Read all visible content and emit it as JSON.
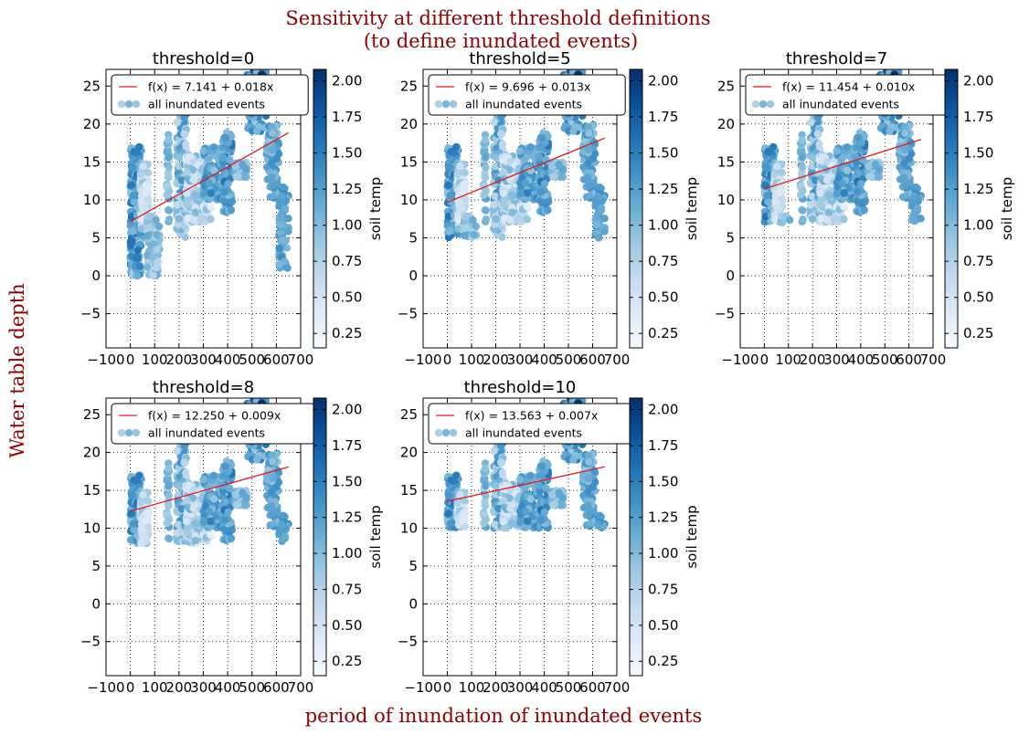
{
  "figure": {
    "suptitle_line1": "Sensitivity at different threshold definitions",
    "suptitle_line2": "(to define inundated events)",
    "ylabel": "Water table depth",
    "xlabel": "period of inundation of inundated events",
    "title_color": "#8b0000",
    "fit_line_color": "#e41a1c",
    "colormap": "Blues"
  },
  "chart_data": [
    {
      "type": "scatter",
      "title": "threshold=0",
      "threshold": 0,
      "xlim": [
        -100,
        700
      ],
      "ylim": [
        -9.5,
        27.2
      ],
      "xticks": [
        -100,
        0,
        100,
        200,
        300,
        400,
        500,
        600,
        700
      ],
      "xticklabels": [
        "−100",
        "0",
        "100",
        "200",
        "300",
        "400",
        "500",
        "600",
        "700"
      ],
      "yticks": [
        -5,
        0,
        5,
        10,
        15,
        20,
        25
      ],
      "yticklabels": [
        "−5",
        "0",
        "5",
        "10",
        "15",
        "20",
        "25"
      ],
      "grid": true,
      "legend_placement": "top-left",
      "series": [
        {
          "name": "f(x) = 7.141 + 0.018x",
          "kind": "line",
          "intercept": 7.141,
          "slope": 0.018,
          "x_range": [
            0,
            650
          ]
        },
        {
          "name": "all inundated events",
          "kind": "scatter",
          "color_by": "soil temp",
          "min_y": 0
        }
      ],
      "colorbar": {
        "label": "soil temp",
        "range": [
          0.15,
          2.08
        ],
        "ticks": [
          0.25,
          0.5,
          0.75,
          1.0,
          1.25,
          1.5,
          1.75,
          2.0
        ],
        "ticklabels": [
          "0.25",
          "0.50",
          "0.75",
          "1.00",
          "1.25",
          "1.50",
          "1.75",
          "2.00"
        ]
      }
    },
    {
      "type": "scatter",
      "title": "threshold=5",
      "threshold": 5,
      "xlim": [
        -100,
        700
      ],
      "ylim": [
        -9.5,
        27.2
      ],
      "xticks": [
        -100,
        0,
        100,
        200,
        300,
        400,
        500,
        600,
        700
      ],
      "xticklabels": [
        "−100",
        "0",
        "100",
        "200",
        "300",
        "400",
        "500",
        "600",
        "700"
      ],
      "yticks": [
        -5,
        0,
        5,
        10,
        15,
        20,
        25
      ],
      "yticklabels": [
        "−5",
        "0",
        "5",
        "10",
        "15",
        "20",
        "25"
      ],
      "grid": true,
      "legend_placement": "top-left",
      "series": [
        {
          "name": "f(x) = 9.696 + 0.013x",
          "kind": "line",
          "intercept": 9.696,
          "slope": 0.013,
          "x_range": [
            0,
            650
          ]
        },
        {
          "name": "all inundated events",
          "kind": "scatter",
          "color_by": "soil temp",
          "min_y": 5
        }
      ],
      "colorbar": {
        "label": "soil temp",
        "range": [
          0.15,
          2.08
        ],
        "ticks": [
          0.25,
          0.5,
          0.75,
          1.0,
          1.25,
          1.5,
          1.75,
          2.0
        ],
        "ticklabels": [
          "0.25",
          "0.50",
          "0.75",
          "1.00",
          "1.25",
          "1.50",
          "1.75",
          "2.00"
        ]
      }
    },
    {
      "type": "scatter",
      "title": "threshold=7",
      "threshold": 7,
      "xlim": [
        -100,
        700
      ],
      "ylim": [
        -9.5,
        27.2
      ],
      "xticks": [
        -100,
        0,
        100,
        200,
        300,
        400,
        500,
        600,
        700
      ],
      "xticklabels": [
        "−100",
        "0",
        "100",
        "200",
        "300",
        "400",
        "500",
        "600",
        "700"
      ],
      "yticks": [
        -5,
        0,
        5,
        10,
        15,
        20,
        25
      ],
      "yticklabels": [
        "−5",
        "0",
        "5",
        "10",
        "15",
        "20",
        "25"
      ],
      "grid": true,
      "legend_placement": "top-left",
      "series": [
        {
          "name": "f(x) = 11.454 + 0.010x",
          "kind": "line",
          "intercept": 11.454,
          "slope": 0.01,
          "x_range": [
            0,
            650
          ]
        },
        {
          "name": "all inundated events",
          "kind": "scatter",
          "color_by": "soil temp",
          "min_y": 7
        }
      ],
      "colorbar": {
        "label": "soil temp",
        "range": [
          0.15,
          2.08
        ],
        "ticks": [
          0.25,
          0.5,
          0.75,
          1.0,
          1.25,
          1.5,
          1.75,
          2.0
        ],
        "ticklabels": [
          "0.25",
          "0.50",
          "0.75",
          "1.00",
          "1.25",
          "1.50",
          "1.75",
          "2.00"
        ]
      }
    },
    {
      "type": "scatter",
      "title": "threshold=8",
      "threshold": 8,
      "xlim": [
        -100,
        700
      ],
      "ylim": [
        -9.5,
        27.2
      ],
      "xticks": [
        -100,
        0,
        100,
        200,
        300,
        400,
        500,
        600,
        700
      ],
      "xticklabels": [
        "−100",
        "0",
        "100",
        "200",
        "300",
        "400",
        "500",
        "600",
        "700"
      ],
      "yticks": [
        -5,
        0,
        5,
        10,
        15,
        20,
        25
      ],
      "yticklabels": [
        "−5",
        "0",
        "5",
        "10",
        "15",
        "20",
        "25"
      ],
      "grid": true,
      "legend_placement": "top-left",
      "series": [
        {
          "name": "f(x) = 12.250 + 0.009x",
          "kind": "line",
          "intercept": 12.25,
          "slope": 0.009,
          "x_range": [
            0,
            650
          ]
        },
        {
          "name": "all inundated events",
          "kind": "scatter",
          "color_by": "soil temp",
          "min_y": 8
        }
      ],
      "colorbar": {
        "label": "soil temp",
        "range": [
          0.15,
          2.08
        ],
        "ticks": [
          0.25,
          0.5,
          0.75,
          1.0,
          1.25,
          1.5,
          1.75,
          2.0
        ],
        "ticklabels": [
          "0.25",
          "0.50",
          "0.75",
          "1.00",
          "1.25",
          "1.50",
          "1.75",
          "2.00"
        ]
      }
    },
    {
      "type": "scatter",
      "title": "threshold=10",
      "threshold": 10,
      "xlim": [
        -100,
        700
      ],
      "ylim": [
        -9.5,
        27.2
      ],
      "xticks": [
        -100,
        0,
        100,
        200,
        300,
        400,
        500,
        600,
        700
      ],
      "xticklabels": [
        "−100",
        "0",
        "100",
        "200",
        "300",
        "400",
        "500",
        "600",
        "700"
      ],
      "yticks": [
        -5,
        0,
        5,
        10,
        15,
        20,
        25
      ],
      "yticklabels": [
        "−5",
        "0",
        "5",
        "10",
        "15",
        "20",
        "25"
      ],
      "grid": true,
      "legend_placement": "top-left",
      "series": [
        {
          "name": "f(x) = 13.563 + 0.007x",
          "kind": "line",
          "intercept": 13.563,
          "slope": 0.007,
          "x_range": [
            0,
            650
          ]
        },
        {
          "name": "all inundated events",
          "kind": "scatter",
          "color_by": "soil temp",
          "min_y": 10
        }
      ],
      "colorbar": {
        "label": "soil temp",
        "range": [
          0.15,
          2.08
        ],
        "ticks": [
          0.25,
          0.5,
          0.75,
          1.0,
          1.25,
          1.5,
          1.75,
          2.0
        ],
        "ticklabels": [
          "0.25",
          "0.50",
          "0.75",
          "1.00",
          "1.25",
          "1.50",
          "1.75",
          "2.00"
        ]
      }
    }
  ],
  "point_clusters": [
    {
      "x": [
        0,
        45
      ],
      "y": [
        0,
        17
      ],
      "c": [
        0.8,
        1.6
      ],
      "n": 280
    },
    {
      "x": [
        40,
        75
      ],
      "y": [
        6,
        15
      ],
      "c": [
        0.3,
        1.0
      ],
      "n": 90
    },
    {
      "x": [
        70,
        120
      ],
      "y": [
        0,
        8
      ],
      "c": [
        0.7,
        1.2
      ],
      "n": 70
    },
    {
      "x": [
        150,
        160
      ],
      "y": [
        7,
        20
      ],
      "c": [
        0.8,
        1.2
      ],
      "n": 30
    },
    {
      "x": [
        190,
        230
      ],
      "y": [
        5,
        22
      ],
      "c": [
        0.6,
        1.4
      ],
      "n": 140
    },
    {
      "x": [
        230,
        330
      ],
      "y": [
        7,
        16
      ],
      "c": [
        0.3,
        1.1
      ],
      "n": 220
    },
    {
      "x": [
        300,
        380
      ],
      "y": [
        10,
        17
      ],
      "c": [
        0.9,
        1.5
      ],
      "n": 120
    },
    {
      "x": [
        380,
        420
      ],
      "y": [
        8,
        19
      ],
      "c": [
        1.0,
        1.6
      ],
      "n": 80
    },
    {
      "x": [
        430,
        480
      ],
      "y": [
        13,
        15
      ],
      "c": [
        0.8,
        1.2
      ],
      "n": 40
    },
    {
      "x": [
        480,
        560
      ],
      "y": [
        19,
        27
      ],
      "c": [
        0.9,
        1.6
      ],
      "n": 110
    },
    {
      "x": [
        560,
        610
      ],
      "y": [
        10,
        20
      ],
      "c": [
        0.9,
        1.4
      ],
      "n": 80
    },
    {
      "x": [
        610,
        650
      ],
      "y": [
        1,
        12
      ],
      "c": [
        1.0,
        1.4
      ],
      "n": 70
    },
    {
      "x": [
        535,
        545
      ],
      "y": [
        24,
        27
      ],
      "c": [
        1.8,
        2.1
      ],
      "n": 10
    }
  ]
}
